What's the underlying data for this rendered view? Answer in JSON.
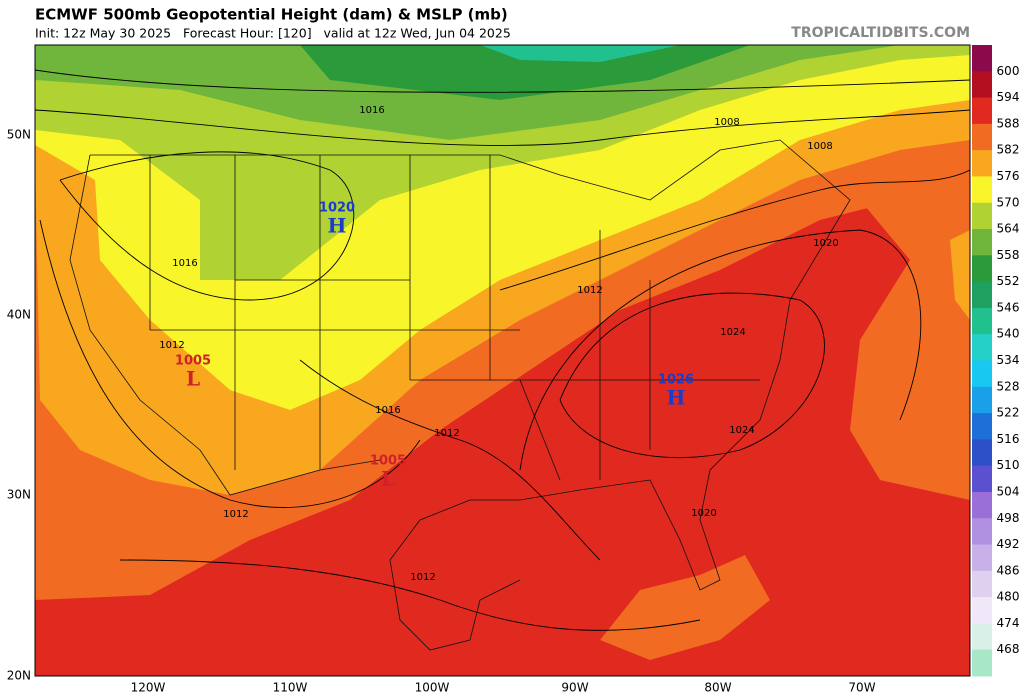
{
  "header": {
    "title": "ECMWF 500mb Geopotential Height (dam) & MSLP (mb)",
    "subtitle": "Init: 12z May 30 2025   Forecast Hour: [120]   valid at 12z Wed, Jun 04 2025",
    "credit": "TROPICALTIDBITS.COM"
  },
  "colorbar": {
    "levels": [
      600,
      594,
      588,
      582,
      576,
      570,
      564,
      558,
      552,
      546,
      540,
      534,
      528,
      522,
      516,
      510,
      504,
      498,
      492,
      486,
      480,
      474,
      468
    ],
    "colors": [
      "#8c0a4c",
      "#b30f20",
      "#e02a1f",
      "#f26b22",
      "#f8a71f",
      "#f8f52b",
      "#b1d233",
      "#70b63d",
      "#2b9a3b",
      "#1fa060",
      "#20c08f",
      "#25d0c8",
      "#18c8f0",
      "#1aa0e8",
      "#1e70d8",
      "#2c50c8",
      "#5a50d0",
      "#9a70d8",
      "#b090e0",
      "#c8b0e8",
      "#e0d0f0",
      "#f0e8f8",
      "#d8f0e8",
      "#a8e8c8"
    ]
  },
  "axes": {
    "lat_labels": [
      "50N",
      "40N",
      "30N",
      "20N"
    ],
    "lon_labels": [
      "120W",
      "110W",
      "100W",
      "90W",
      "80W",
      "70W"
    ]
  },
  "centers": [
    {
      "kind": "H",
      "pressure": 1020
    },
    {
      "kind": "H",
      "pressure": 1026
    },
    {
      "kind": "L",
      "pressure": 1005
    },
    {
      "kind": "L",
      "pressure": 1005
    }
  ],
  "isobar_labels": [
    1016,
    1008,
    1008,
    1020,
    1016,
    1012,
    1012,
    1024,
    1016,
    1012,
    1024,
    1012,
    1020,
    1012
  ]
}
